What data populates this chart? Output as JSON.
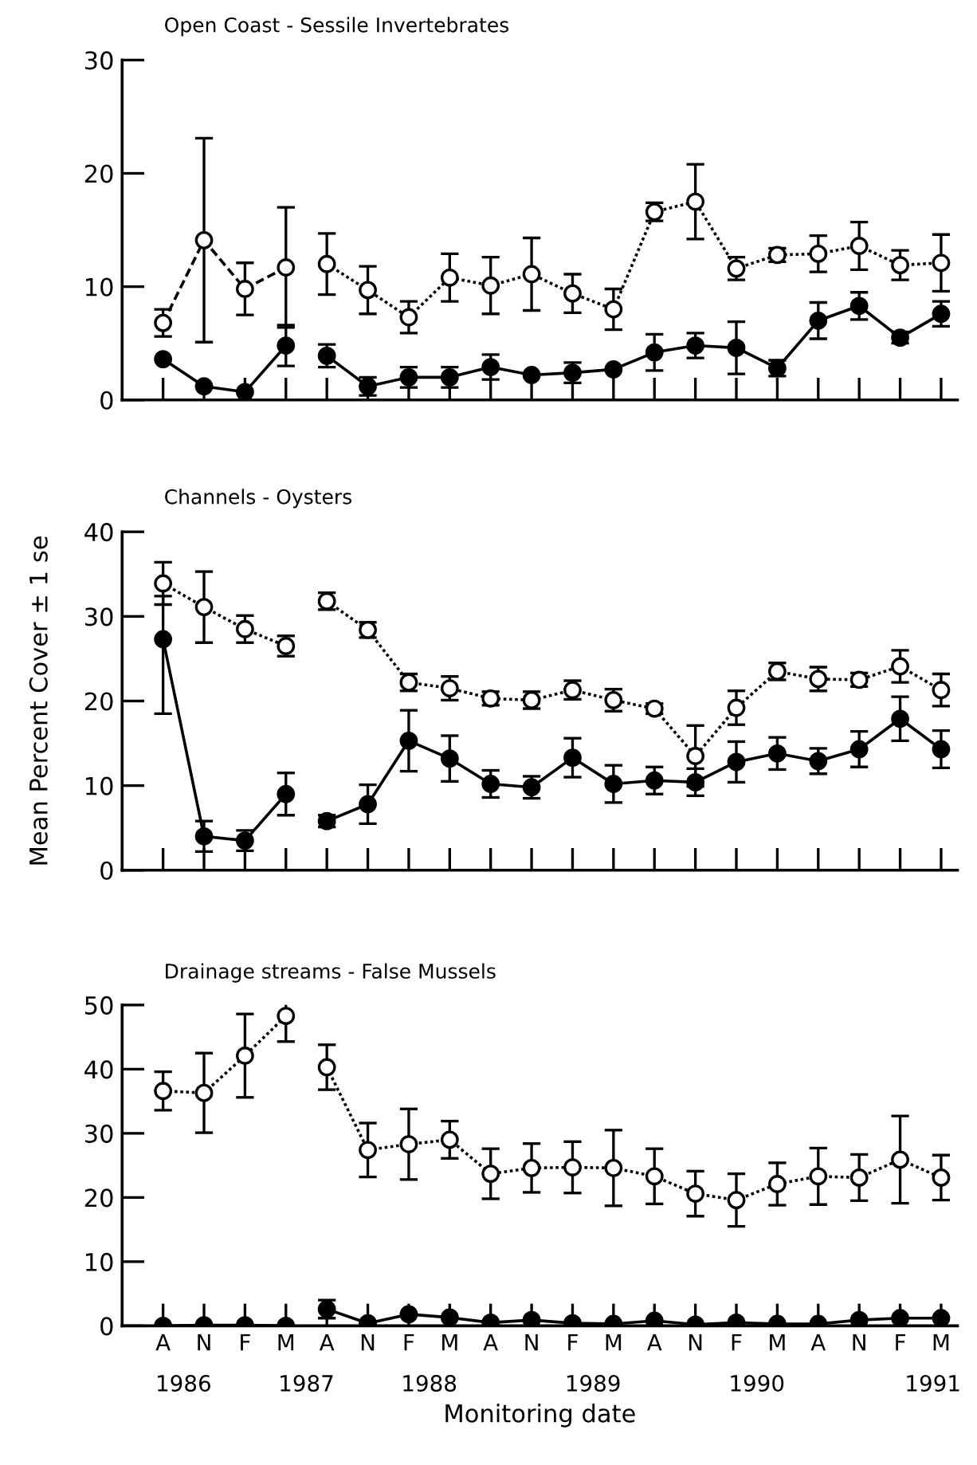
{
  "chart_data": [
    {
      "type": "line",
      "title": "Open Coast - Sessile Invertebrates",
      "tick_labels": "y",
      "line_style": "solid",
      "marker": "circle",
      "grid": false,
      "categories": [
        null,
        null,
        null,
        null,
        null,
        null,
        null,
        null,
        null,
        null,
        null,
        null,
        null,
        null,
        null,
        null,
        null,
        null,
        null,
        null
      ],
      "ylim": [
        0,
        30
      ],
      "yticks": [
        0,
        10,
        20,
        30
      ],
      "series": [
        {
          "color": "#ffffff",
          "line_style": "dashed",
          "values": [
            6.8,
            14.1,
            9.8,
            11.7,
            null,
            null,
            null,
            null,
            null,
            null,
            null,
            null,
            null,
            null,
            null,
            null,
            null,
            null,
            null,
            null
          ],
          "errors": [
            1.2,
            9,
            2.3,
            5.3,
            null,
            null,
            null,
            null,
            null,
            null,
            null,
            null,
            null,
            null,
            null,
            null,
            null,
            null,
            null,
            null
          ]
        },
        {
          "color": "#ffffff",
          "line_style": "dotted",
          "values": [
            null,
            null,
            null,
            null,
            12.0,
            9.7,
            7.3,
            10.8,
            10.1,
            11.1,
            9.4,
            8.0,
            16.6,
            17.5,
            11.6,
            12.8,
            12.9,
            13.6,
            11.9,
            12.1
          ],
          "errors": [
            null,
            null,
            null,
            null,
            2.7,
            2.1,
            1.4,
            2.1,
            2.5,
            3.2,
            1.7,
            1.8,
            0.8,
            3.3,
            1.0,
            0.6,
            1.6,
            2.1,
            1.3,
            2.5
          ]
        },
        {
          "color": "#000000",
          "values": [
            3.6,
            1.2,
            0.7,
            4.8,
            null,
            null,
            null,
            null,
            null,
            null,
            null,
            null,
            null,
            null,
            null,
            null,
            null,
            null,
            null,
            null
          ],
          "errors": [
            null,
            null,
            null,
            1.8,
            null,
            null,
            null,
            null,
            null,
            null,
            null,
            null,
            null,
            null,
            null,
            null,
            null,
            null,
            null,
            null
          ]
        },
        {
          "color": "#000000",
          "values": [
            null,
            null,
            null,
            null,
            3.9,
            1.2,
            2.0,
            2.0,
            2.9,
            2.2,
            2.4,
            2.7,
            4.2,
            4.8,
            4.6,
            2.8,
            7.0,
            8.3,
            5.5,
            7.6
          ],
          "errors": [
            null,
            null,
            null,
            null,
            1.0,
            0.8,
            0.9,
            0.9,
            1.1,
            null,
            0.9,
            null,
            1.6,
            1.1,
            2.3,
            0.7,
            1.6,
            1.2,
            0.5,
            1.1
          ]
        }
      ]
    },
    {
      "type": "line",
      "title": "Channels - Oysters",
      "ylabel": "Mean Percent Cover ± 1 se",
      "tick_labels": "y",
      "line_style": "solid",
      "marker": "circle",
      "grid": false,
      "categories": [
        null,
        null,
        null,
        null,
        null,
        null,
        null,
        null,
        null,
        null,
        null,
        null,
        null,
        null,
        null,
        null,
        null,
        null,
        null,
        null
      ],
      "ylim": [
        0,
        40
      ],
      "yticks": [
        0,
        10,
        20,
        30,
        40
      ],
      "series": [
        {
          "color": "#ffffff",
          "line_style": "dotted",
          "values": [
            33.9,
            31.1,
            28.5,
            26.5,
            null,
            null,
            null,
            null,
            null,
            null,
            null,
            null,
            null,
            null,
            null,
            null,
            null,
            null,
            null,
            null
          ],
          "errors": [
            2.5,
            4.2,
            1.6,
            1.2,
            null,
            null,
            null,
            null,
            null,
            null,
            null,
            null,
            null,
            null,
            null,
            null,
            null,
            null,
            null,
            null
          ]
        },
        {
          "color": "#ffffff",
          "line_style": "dotted",
          "values": [
            null,
            null,
            null,
            null,
            31.8,
            28.4,
            22.2,
            21.5,
            20.3,
            20.1,
            21.3,
            20.1,
            19.1,
            13.5,
            19.2,
            23.5,
            22.6,
            22.5,
            24.1,
            21.3
          ],
          "errors": [
            null,
            null,
            null,
            null,
            1.0,
            0.9,
            1.0,
            1.4,
            0.8,
            1.0,
            1.1,
            1.3,
            0.6,
            3.6,
            2.0,
            1.0,
            1.4,
            0.8,
            1.9,
            1.9
          ]
        },
        {
          "color": "#000000",
          "values": [
            27.3,
            4.0,
            3.5,
            9.0,
            null,
            null,
            null,
            null,
            null,
            null,
            null,
            null,
            null,
            null,
            null,
            null,
            null,
            null,
            null,
            null
          ],
          "errors": [
            [
              18.5,
              32.4
            ],
            1.8,
            1.2,
            2.5,
            null,
            null,
            null,
            null,
            null,
            null,
            null,
            null,
            null,
            null,
            null,
            null,
            null,
            null,
            null,
            null
          ]
        },
        {
          "color": "#000000",
          "values": [
            null,
            null,
            null,
            null,
            5.8,
            7.8,
            15.3,
            13.2,
            10.2,
            9.8,
            13.3,
            10.2,
            10.6,
            10.4,
            12.8,
            13.8,
            12.9,
            14.3,
            17.9,
            14.3
          ],
          "errors": [
            null,
            null,
            null,
            null,
            0.7,
            2.3,
            3.6,
            2.7,
            1.6,
            1.3,
            2.3,
            2.2,
            1.6,
            1.6,
            2.4,
            1.9,
            1.5,
            2.1,
            2.6,
            2.2
          ]
        }
      ]
    },
    {
      "type": "line",
      "title": "Drainage streams - False Mussels",
      "xlabel": "Monitoring date",
      "line_style": "solid",
      "marker": "circle",
      "grid": false,
      "categories": [
        "A",
        "N",
        "F",
        "M",
        "A",
        "N",
        "F",
        "M",
        "A",
        "N",
        "F",
        "M",
        "A",
        "N",
        "F",
        "M",
        "A",
        "N",
        "F",
        "M"
      ],
      "ylim": [
        0,
        50
      ],
      "yticks": [
        0,
        10,
        20,
        30,
        40,
        50
      ],
      "annotations": [
        "1986",
        "1987",
        "1988",
        "1989",
        "1990",
        "1991"
      ],
      "series": [
        {
          "color": "#ffffff",
          "line_style": "dotted",
          "values": [
            36.6,
            36.3,
            42.1,
            48.3,
            null,
            null,
            null,
            null,
            null,
            null,
            null,
            null,
            null,
            null,
            null,
            null,
            null,
            null,
            null,
            null
          ],
          "errors": [
            3.0,
            6.2,
            6.5,
            [
              44.3,
              50.4
            ],
            null,
            null,
            null,
            null,
            null,
            null,
            null,
            null,
            null,
            null,
            null,
            null,
            null,
            null,
            null,
            null
          ]
        },
        {
          "color": "#ffffff",
          "line_style": "dotted",
          "values": [
            null,
            null,
            null,
            null,
            40.3,
            27.4,
            28.3,
            29.0,
            23.7,
            24.6,
            24.7,
            24.6,
            23.3,
            20.6,
            19.6,
            22.1,
            23.3,
            23.1,
            25.9,
            23.1
          ],
          "errors": [
            null,
            null,
            null,
            null,
            3.5,
            4.2,
            5.5,
            2.9,
            3.9,
            3.8,
            4.0,
            5.9,
            4.3,
            3.5,
            4.1,
            3.3,
            4.4,
            3.6,
            6.8,
            3.5
          ]
        },
        {
          "color": "#000000",
          "values": [
            0,
            0.1,
            0.1,
            0,
            null,
            null,
            null,
            null,
            null,
            null,
            null,
            null,
            null,
            null,
            null,
            null,
            null,
            null,
            null,
            null
          ]
        },
        {
          "color": "#000000",
          "values": [
            null,
            null,
            null,
            null,
            2.6,
            0.4,
            1.8,
            1.3,
            0.5,
            0.9,
            0.4,
            0.3,
            0.8,
            0.2,
            0.5,
            0.3,
            0.3,
            0.9,
            1.2,
            1.2
          ],
          "errors": [
            null,
            null,
            null,
            null,
            1.4,
            null,
            null,
            null,
            null,
            null,
            null,
            null,
            null,
            null,
            null,
            null,
            null,
            null,
            null,
            null
          ]
        }
      ]
    }
  ]
}
